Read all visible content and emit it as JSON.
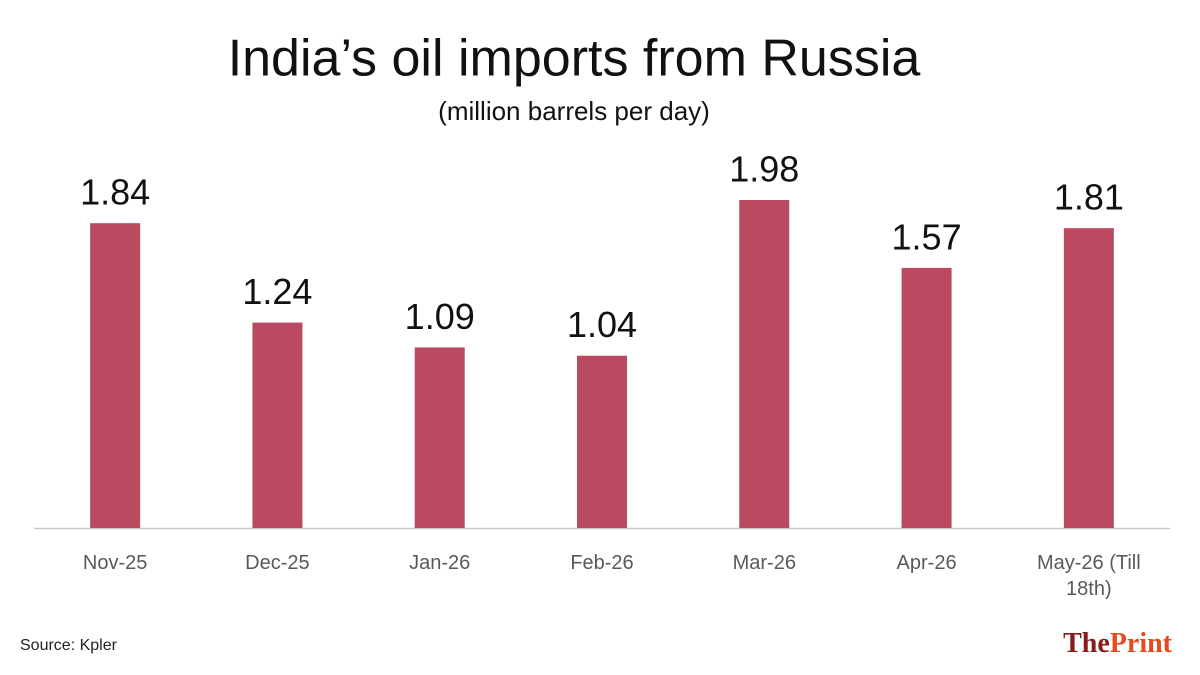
{
  "chart_data": {
    "type": "bar",
    "title": "India’s oil imports from Russia",
    "subtitle": "(million barrels per day)",
    "categories": [
      "Nov-25",
      "Dec-25",
      "Jan-26",
      "Feb-26",
      "Mar-26",
      "Apr-26",
      "May-26 (Till 18th)"
    ],
    "values": [
      1.84,
      1.24,
      1.09,
      1.04,
      1.98,
      1.57,
      1.81
    ],
    "color": "#b94a60",
    "source": "Source: Kpler",
    "logo": [
      "The",
      "Print"
    ]
  }
}
